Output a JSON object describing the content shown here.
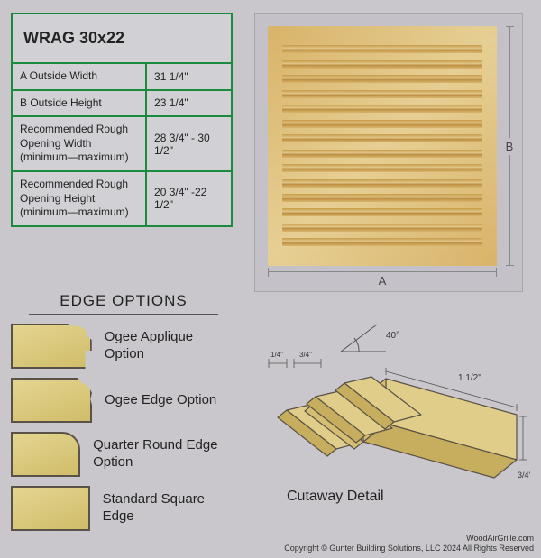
{
  "colors": {
    "page_bg": "#c9c7cc",
    "table_border": "#1a8a3c",
    "table_bg": "#d1d0d4",
    "wood_light": "#e6cf94",
    "wood_mid": "#d9b56c",
    "wood_dark": "#b8893d",
    "shape_border": "#5a5246",
    "text": "#222222",
    "dim_line": "#888888"
  },
  "spec": {
    "title": "WRAG 30x22",
    "rows": [
      {
        "label": "A  Outside Width",
        "value": "31 1/4\""
      },
      {
        "label": "B  Outside Height",
        "value": "23 1/4\""
      },
      {
        "label": "Recommended Rough Opening Width (minimum—maximum)",
        "value": "28 3/4\" - 30 1/2\""
      },
      {
        "label": "Recommended Rough Opening Height (minimum—maximum)",
        "value": "20 3/4\" -22 1/2\""
      }
    ]
  },
  "grille": {
    "louver_count": 14,
    "dim_a_label": "A",
    "dim_b_label": "B"
  },
  "edge": {
    "heading": "EDGE OPTIONS",
    "options": [
      {
        "name": "Ogee Applique Option",
        "shape": "ogee-app"
      },
      {
        "name": "Ogee Edge Option",
        "shape": "ogee"
      },
      {
        "name": "Quarter Round Edge Option",
        "shape": "qround"
      },
      {
        "name": "Standard Square Edge",
        "shape": "square"
      }
    ]
  },
  "cutaway": {
    "title": "Cutaway Detail",
    "angle_label": "40°",
    "dims": {
      "slot": "1/4\"",
      "gap": "3/4\"",
      "depth": "3/4\"",
      "width": "1 1/2\""
    }
  },
  "footer": {
    "site": "WoodAirGrille.com",
    "copyright": "Copyright ©  Gunter Building Solutions, LLC 2024 All Rights Reserved"
  }
}
